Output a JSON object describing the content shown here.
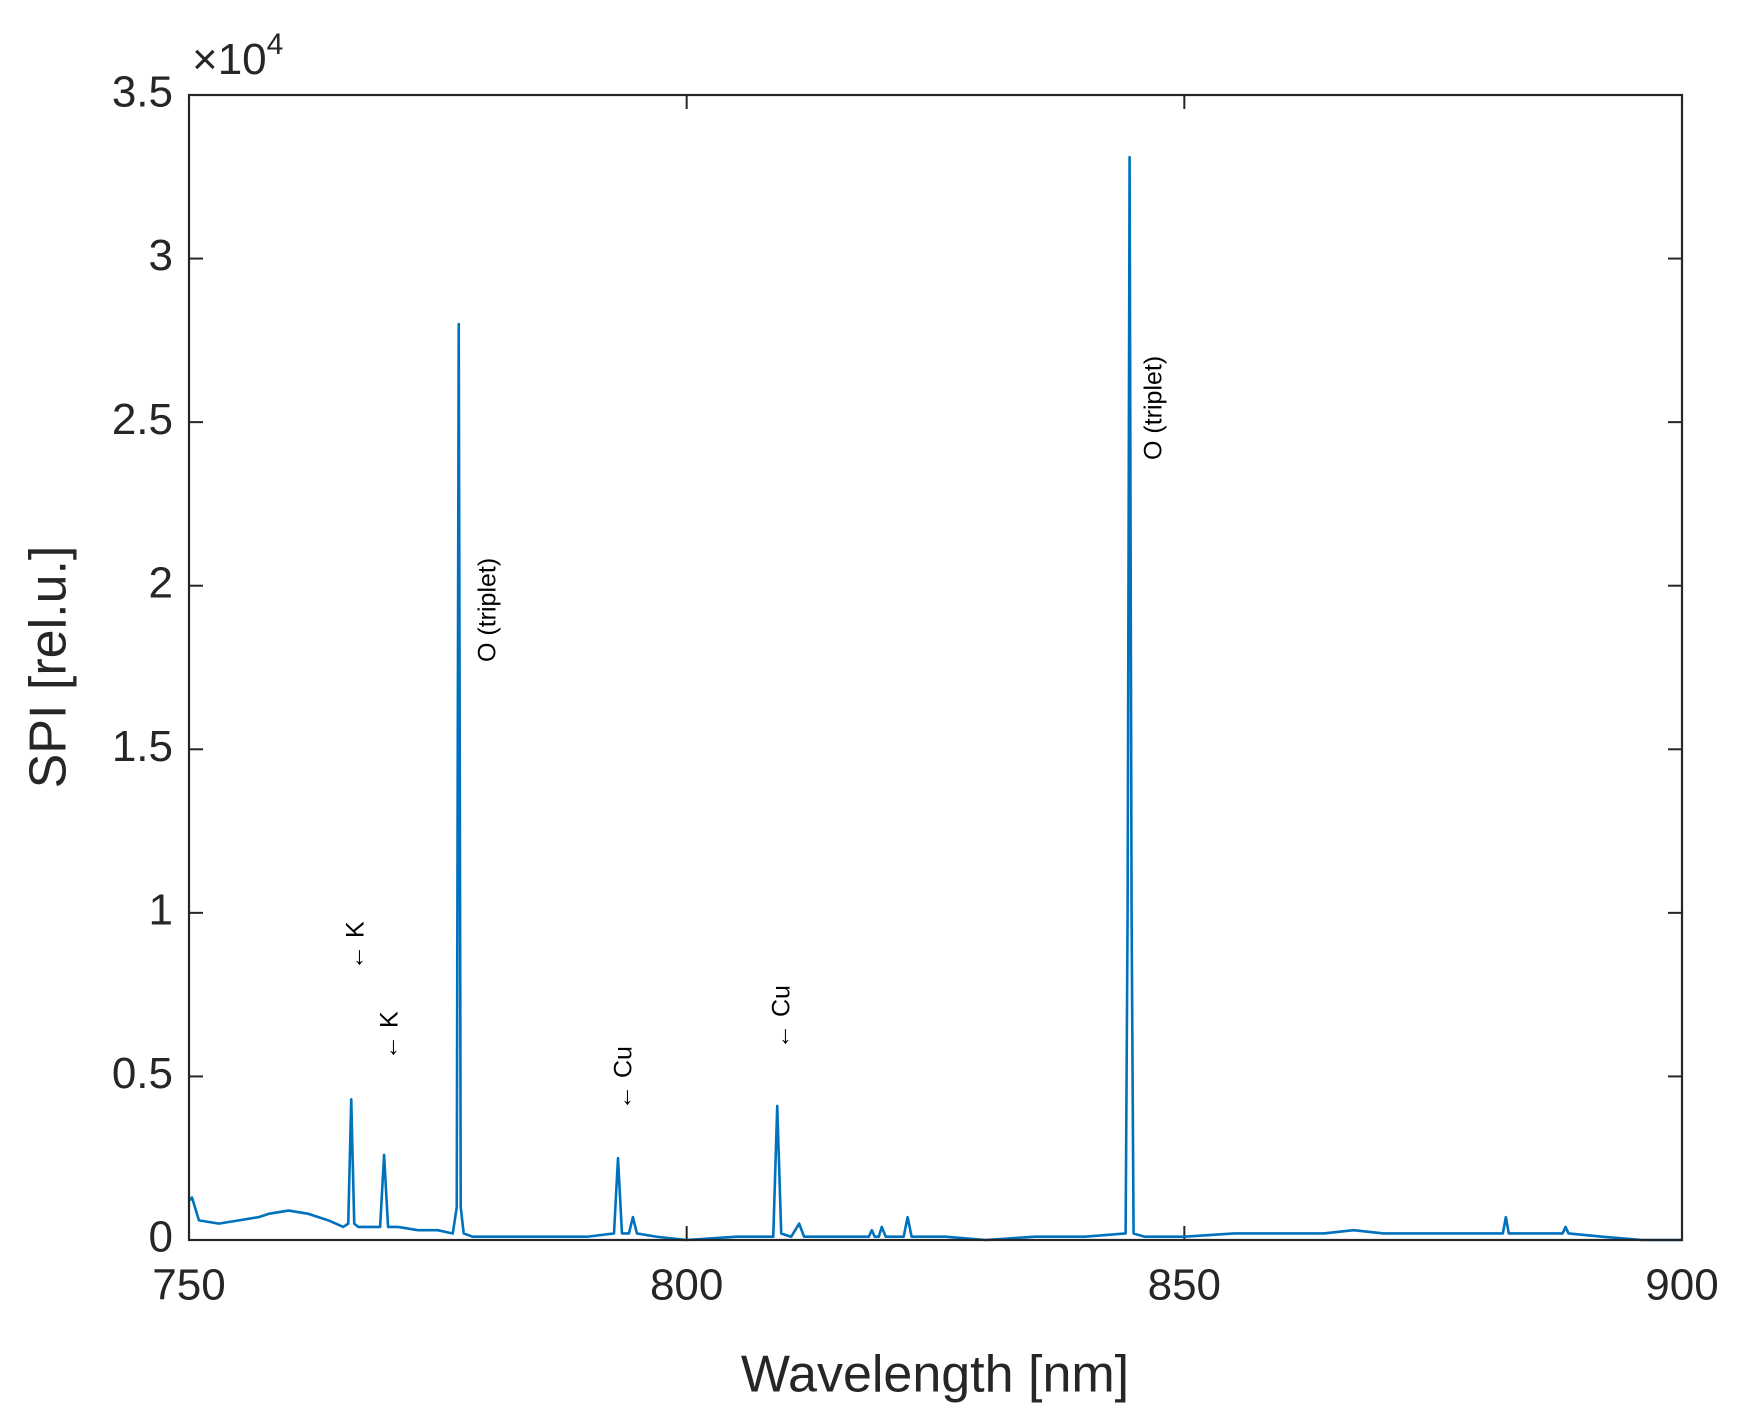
{
  "chart_data": {
    "type": "line",
    "x_label": "Wavelength [nm]",
    "y_label": "SPI [rel.u.]",
    "y_multiplier": {
      "base": "×10",
      "exponent": "4"
    },
    "color": "#0072BD",
    "xlim": [
      750,
      900
    ],
    "xticks": [
      750,
      800,
      850,
      900
    ],
    "ylim": [
      0,
      3.5
    ],
    "yticks": [
      0,
      0.5,
      1,
      1.5,
      2,
      2.5,
      3,
      3.5
    ],
    "grid": false,
    "x": [
      750,
      750.3,
      751,
      753,
      755,
      757,
      758,
      760,
      762,
      764,
      765.5,
      766.0,
      766.3,
      766.6,
      767.0,
      768,
      769.2,
      769.6,
      770.0,
      771,
      773,
      775,
      776.5,
      776.9,
      777.0,
      777.1,
      777.2,
      777.3,
      777.6,
      778.5,
      782,
      786,
      790,
      792.7,
      793.1,
      793.5,
      794.2,
      794.6,
      795.0,
      797,
      800,
      805,
      808.7,
      809.1,
      809.5,
      810.5,
      811.3,
      811.8,
      815,
      818.3,
      818.6,
      818.9,
      819.3,
      819.6,
      820.0,
      821.8,
      822.2,
      822.6,
      826,
      830,
      835,
      840,
      844.1,
      844.3,
      844.5,
      844.7,
      844.9,
      846,
      850,
      855,
      860,
      864,
      867,
      870,
      875,
      880,
      882.0,
      882.3,
      882.6,
      885,
      888.0,
      888.3,
      888.6,
      892,
      896,
      900
    ],
    "values": [
      0.12,
      0.13,
      0.06,
      0.05,
      0.06,
      0.07,
      0.08,
      0.09,
      0.08,
      0.06,
      0.04,
      0.05,
      0.43,
      0.05,
      0.04,
      0.04,
      0.04,
      0.26,
      0.04,
      0.04,
      0.03,
      0.03,
      0.02,
      0.1,
      1.5,
      2.8,
      1.5,
      0.1,
      0.02,
      0.01,
      0.01,
      0.01,
      0.01,
      0.02,
      0.25,
      0.02,
      0.02,
      0.07,
      0.02,
      0.01,
      0.0,
      0.01,
      0.01,
      0.41,
      0.02,
      0.01,
      0.05,
      0.01,
      0.01,
      0.01,
      0.03,
      0.01,
      0.01,
      0.04,
      0.01,
      0.01,
      0.07,
      0.01,
      0.01,
      0.0,
      0.01,
      0.01,
      0.02,
      1.0,
      3.31,
      1.0,
      0.02,
      0.01,
      0.01,
      0.02,
      0.02,
      0.02,
      0.03,
      0.02,
      0.02,
      0.02,
      0.02,
      0.07,
      0.02,
      0.02,
      0.02,
      0.04,
      0.02,
      0.01,
      0.0,
      0.0
    ],
    "annotations": [
      "O (triplet)",
      "O (triplet)",
      "← K",
      "← K",
      "← Cu",
      "← Cu"
    ]
  }
}
